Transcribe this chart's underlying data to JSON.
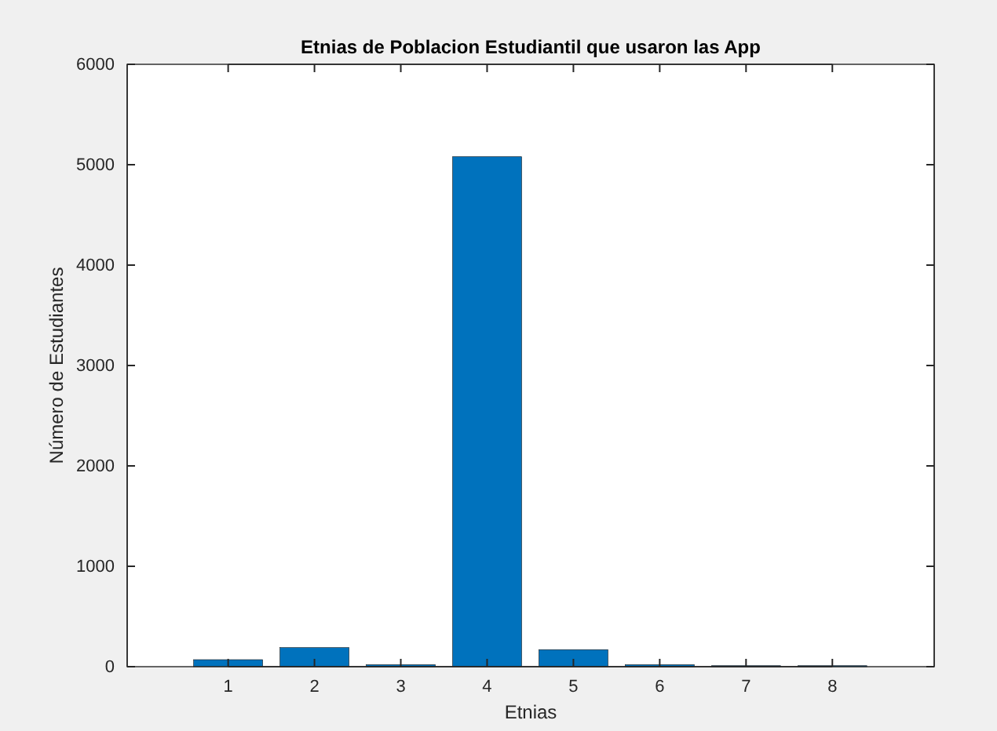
{
  "chart_data": {
    "type": "bar",
    "title": "Etnias de Poblacion Estudiantil que usaron las App",
    "xlabel": "Etnias",
    "ylabel": "Número de Estudiantes",
    "categories": [
      "1",
      "2",
      "3",
      "4",
      "5",
      "6",
      "7",
      "8"
    ],
    "values": [
      70,
      190,
      20,
      5080,
      170,
      20,
      10,
      10
    ],
    "color": "#0072bd",
    "ylim": [
      0,
      6000
    ],
    "yticks": [
      0,
      1000,
      2000,
      3000,
      4000,
      5000,
      6000
    ],
    "grid": false
  }
}
